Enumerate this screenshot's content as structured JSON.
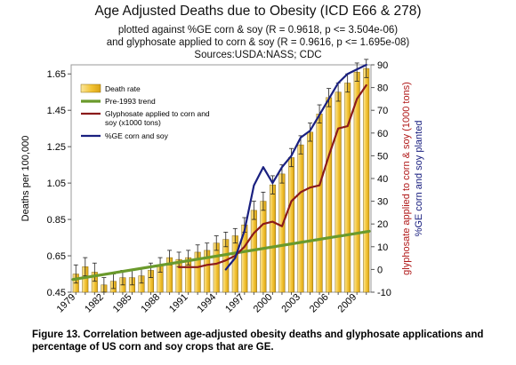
{
  "chart_data": {
    "type": "bar",
    "title": "Age Adjusted Deaths due to Obesity (ICD E66 & 278)",
    "subtitle_lines": [
      "plotted against %GE corn & soy (R = 0.9618, p <= 3.504e-06)",
      "and glyphosate applied to corn & soy (R = 0.9616, p <= 1.695e-08)",
      "Sources:USDA:NASS; CDC"
    ],
    "ylabel_left": "Deaths per 100,000",
    "ylabel_right_1": "glyphosate applied to corn & soy (1000 tons)",
    "ylabel_right_2": "%GE corn and soy planted",
    "ylim_left": [
      0.45,
      1.7
    ],
    "ylim_right": [
      -10,
      90
    ],
    "left_ticks": [
      "1.65",
      "1.45",
      "1.25",
      "1.05",
      "0.85",
      "0.65",
      "0.45"
    ],
    "right_ticks": [
      "90",
      "80",
      "70",
      "60",
      "50",
      "40",
      "30",
      "20",
      "10",
      "0",
      "-10"
    ],
    "x_tick_labels": [
      "1979",
      "1982",
      "1985",
      "1988",
      "1991",
      "1994",
      "1997",
      "2000",
      "2003",
      "2006",
      "2009"
    ],
    "years": [
      1979,
      1980,
      1981,
      1982,
      1983,
      1984,
      1985,
      1986,
      1987,
      1988,
      1989,
      1990,
      1991,
      1992,
      1993,
      1994,
      1995,
      1996,
      1997,
      1998,
      1999,
      2000,
      2001,
      2002,
      2003,
      2004,
      2005,
      2006,
      2007,
      2008,
      2009,
      2010
    ],
    "series": [
      {
        "name": "Death rate",
        "type": "bar",
        "axis": "left",
        "values": [
          0.55,
          0.59,
          0.56,
          0.49,
          0.51,
          0.53,
          0.53,
          0.54,
          0.57,
          0.6,
          0.64,
          0.63,
          0.64,
          0.67,
          0.68,
          0.72,
          0.74,
          0.76,
          0.82,
          0.9,
          0.95,
          1.04,
          1.1,
          1.19,
          1.26,
          1.33,
          1.43,
          1.52,
          1.55,
          1.6,
          1.66,
          1.68
        ],
        "error_bars": [
          0.05,
          0.05,
          0.05,
          0.04,
          0.04,
          0.04,
          0.04,
          0.04,
          0.04,
          0.04,
          0.04,
          0.04,
          0.04,
          0.04,
          0.04,
          0.04,
          0.04,
          0.04,
          0.04,
          0.05,
          0.05,
          0.05,
          0.05,
          0.05,
          0.05,
          0.05,
          0.05,
          0.05,
          0.05,
          0.05,
          0.05,
          0.05
        ],
        "color": "#f3c43a"
      },
      {
        "name": "Pre-1993 trend",
        "type": "line",
        "axis": "left",
        "x": [
          1979,
          2010
        ],
        "values": [
          0.52,
          0.785
        ],
        "color": "#6a9a2c"
      },
      {
        "name": "Glyphosate applied to corn and soy (x1000 tons)",
        "type": "line",
        "axis": "right",
        "x": [
          1990,
          1991,
          1992,
          1993,
          1994,
          1995,
          1996,
          1997,
          1998,
          1999,
          2000,
          2001,
          2002,
          2003,
          2004,
          2005,
          2006,
          2007,
          2008,
          2009,
          2010
        ],
        "values": [
          1,
          1,
          1,
          2,
          2.5,
          4,
          6,
          10,
          16,
          20,
          21,
          19,
          30,
          34,
          36,
          37,
          50,
          62,
          63,
          75,
          81
        ],
        "color": "#8b1a1a"
      },
      {
        "name": "%GE corn and soy",
        "type": "line",
        "axis": "right",
        "x": [
          1995,
          1996,
          1997,
          1998,
          1999,
          2000,
          2001,
          2002,
          2003,
          2004,
          2005,
          2006,
          2007,
          2008,
          2009,
          2010
        ],
        "values": [
          0,
          5,
          17,
          37,
          45,
          38,
          45,
          50,
          58,
          61,
          68,
          75,
          82,
          86,
          88,
          90
        ],
        "color": "#1a2080"
      }
    ],
    "legend_position": "upper-left"
  },
  "caption": "Figure 13. Correlation between age-adjusted obesity deaths and glyphosate applications and percentage of US corn and soy crops that are GE."
}
